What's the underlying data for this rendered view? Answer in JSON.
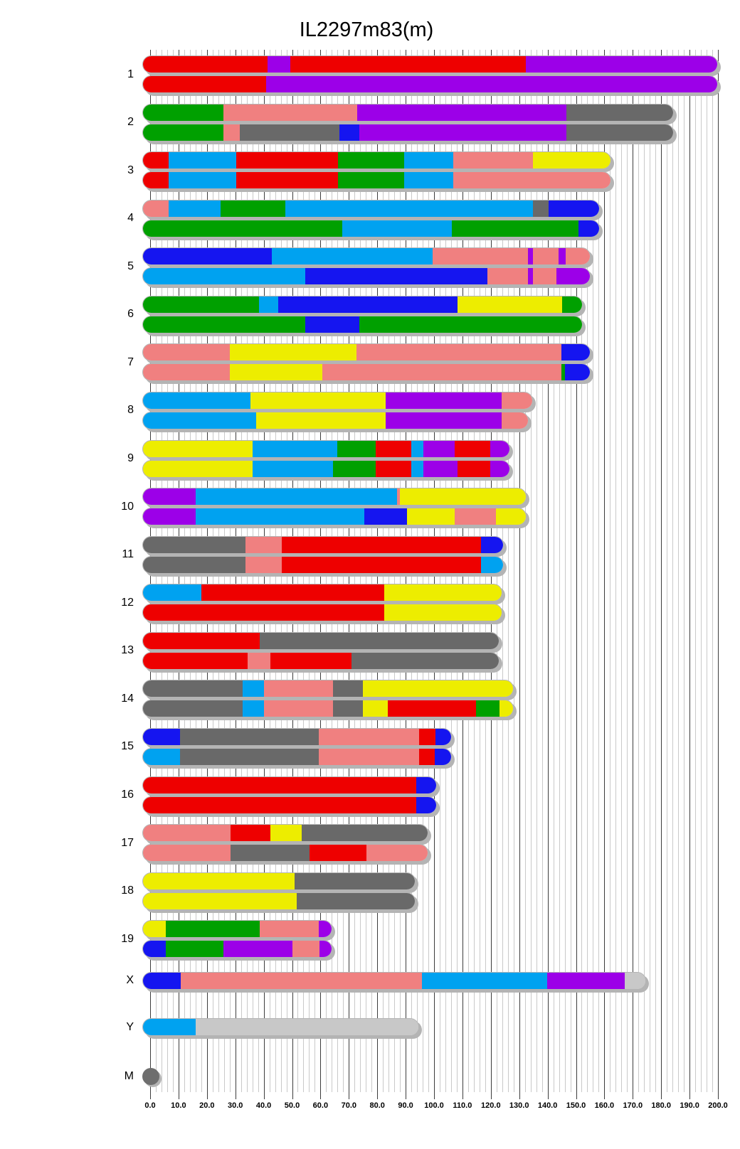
{
  "title": "IL2297m83(m)",
  "palette": {
    "red": "#ee0000",
    "purple": "#9c00e8",
    "green": "#00a000",
    "pink": "#f08080",
    "yellow": "#eded00",
    "cyan": "#00a2f0",
    "blue": "#1515f0",
    "darkgray": "#696969",
    "lightgray": "#c8c8c8",
    "mgray": "#6e6e6e",
    "shadow": "#b4b4b4",
    "gridline_minor": "#c9c9c9",
    "gridline_major": "#3c3c3c"
  },
  "chart_data": {
    "type": "heatmap",
    "subtype": "chromosome-haplotype-paint",
    "title": "IL2297m83(m)",
    "x_axis": {
      "min": 0,
      "max": 200,
      "major_tick": 10,
      "minor_tick": 2,
      "tick_labels": [
        "0.0",
        "10.0",
        "20.0",
        "30.0",
        "40.0",
        "50.0",
        "60.0",
        "70.0",
        "80.0",
        "90.0",
        "100.0",
        "110.0",
        "120.0",
        "130.0",
        "140.0",
        "150.0",
        "160.0",
        "170.0",
        "180.0",
        "190.0",
        "200.0"
      ]
    },
    "segment_format": [
      "color",
      "start_mb",
      "end_mb"
    ],
    "chromosomes": [
      {
        "name": "1",
        "bars": [
          [
            [
              "red",
              0,
              41
            ],
            [
              "purple",
              41,
              49.2
            ],
            [
              "red",
              49.2,
              132
            ],
            [
              "purple",
              132,
              197.2
            ]
          ],
          [
            [
              "red",
              0,
              40.5
            ],
            [
              "purple",
              40.5,
              197.2
            ]
          ]
        ]
      },
      {
        "name": "2",
        "bars": [
          [
            [
              "green",
              0,
              25.5
            ],
            [
              "pink",
              25.5,
              72.7
            ],
            [
              "purple",
              72.7,
              146.3
            ],
            [
              "darkgray",
              146.3,
              181.7
            ]
          ],
          [
            [
              "green",
              0,
              25.5
            ],
            [
              "pink",
              25.5,
              31.3
            ],
            [
              "darkgray",
              31.3,
              66.3
            ],
            [
              "blue",
              66.3,
              73.4
            ],
            [
              "purple",
              73.4,
              146.3
            ],
            [
              "darkgray",
              146.3,
              181.7
            ]
          ]
        ]
      },
      {
        "name": "3",
        "bars": [
          [
            [
              "red",
              0,
              6.2
            ],
            [
              "cyan",
              6.2,
              30.2
            ],
            [
              "red",
              30.2,
              66
            ],
            [
              "green",
              66,
              89.2
            ],
            [
              "cyan",
              89.2,
              106.6
            ],
            [
              "pink",
              106.6,
              134.6
            ],
            [
              "yellow",
              134.6,
              159.6
            ]
          ],
          [
            [
              "red",
              0,
              6.2
            ],
            [
              "cyan",
              6.2,
              30.2
            ],
            [
              "red",
              30.2,
              66
            ],
            [
              "green",
              66,
              89.2
            ],
            [
              "cyan",
              89.2,
              106.6
            ],
            [
              "pink",
              106.6,
              159.6
            ]
          ]
        ]
      },
      {
        "name": "4",
        "bars": [
          [
            [
              "pink",
              0,
              6.3
            ],
            [
              "cyan",
              6.3,
              24.5
            ],
            [
              "green",
              24.5,
              47.3
            ],
            [
              "cyan",
              47.3,
              134.6
            ],
            [
              "darkgray",
              134.6,
              140
            ],
            [
              "blue",
              140,
              155.6
            ]
          ],
          [
            [
              "green",
              0,
              67.4
            ],
            [
              "cyan",
              67.4,
              106
            ],
            [
              "green",
              106,
              150.6
            ],
            [
              "blue",
              150.6,
              155.6
            ]
          ]
        ]
      },
      {
        "name": "5",
        "bars": [
          [
            [
              "blue",
              0,
              42.7
            ],
            [
              "cyan",
              42.7,
              99.2
            ],
            [
              "pink",
              99.2,
              132.8
            ],
            [
              "purple",
              132.8,
              134.6
            ],
            [
              "pink",
              134.6,
              143.5
            ],
            [
              "purple",
              143.5,
              146
            ],
            [
              "pink",
              146,
              152.5
            ]
          ],
          [
            [
              "cyan",
              0,
              54.4
            ],
            [
              "blue",
              54.4,
              118.5
            ],
            [
              "pink",
              118.5,
              132.8
            ],
            [
              "purple",
              132.8,
              134.6
            ],
            [
              "pink",
              134.6,
              142.8
            ],
            [
              "purple",
              142.8,
              152.5
            ]
          ]
        ]
      },
      {
        "name": "6",
        "bars": [
          [
            [
              "green",
              0,
              38
            ],
            [
              "cyan",
              38,
              44.8
            ],
            [
              "blue",
              44.8,
              108
            ],
            [
              "yellow",
              108,
              144.9
            ],
            [
              "green",
              144.9,
              149.5
            ]
          ],
          [
            [
              "green",
              0,
              54.4
            ],
            [
              "blue",
              54.4,
              73.4
            ],
            [
              "green",
              73.4,
              149.5
            ]
          ]
        ]
      },
      {
        "name": "7",
        "bars": [
          [
            [
              "pink",
              0,
              27.7
            ],
            [
              "yellow",
              27.7,
              72.4
            ],
            [
              "pink",
              72.4,
              144.5
            ],
            [
              "blue",
              144.5,
              152.5
            ]
          ],
          [
            [
              "pink",
              0,
              27.7
            ],
            [
              "yellow",
              27.7,
              60.3
            ],
            [
              "pink",
              60.3,
              144.5
            ],
            [
              "green",
              144.5,
              145.8
            ],
            [
              "blue",
              145.8,
              152.5
            ]
          ]
        ]
      },
      {
        "name": "8",
        "bars": [
          [
            [
              "cyan",
              0,
              35.1
            ],
            [
              "yellow",
              35.1,
              82.7
            ],
            [
              "purple",
              82.7,
              123.5
            ],
            [
              "pink",
              123.5,
              132
            ]
          ],
          [
            [
              "cyan",
              0,
              37
            ],
            [
              "yellow",
              37,
              82.7
            ],
            [
              "purple",
              82.7,
              123.5
            ],
            [
              "pink",
              123.5,
              130.5
            ]
          ]
        ]
      },
      {
        "name": "9",
        "bars": [
          [
            [
              "yellow",
              0,
              35.8
            ],
            [
              "cyan",
              35.8,
              65.6
            ],
            [
              "green",
              65.6,
              79.2
            ],
            [
              "red",
              79.2,
              91.7
            ],
            [
              "cyan",
              91.7,
              96
            ],
            [
              "purple",
              96,
              107
            ],
            [
              "red",
              107,
              119.5
            ],
            [
              "purple",
              119.5,
              124.1
            ]
          ],
          [
            [
              "yellow",
              0,
              35.8
            ],
            [
              "cyan",
              35.8,
              64.1
            ],
            [
              "green",
              64.1,
              79.2
            ],
            [
              "red",
              79.2,
              91.7
            ],
            [
              "cyan",
              91.7,
              96
            ],
            [
              "purple",
              96,
              108
            ],
            [
              "red",
              108,
              119.5
            ],
            [
              "purple",
              119.5,
              124.1
            ]
          ]
        ]
      },
      {
        "name": "10",
        "bars": [
          [
            [
              "purple",
              0,
              15.9
            ],
            [
              "cyan",
              15.9,
              86.6
            ],
            [
              "pink",
              86.6,
              87.8
            ],
            [
              "yellow",
              87.8,
              129.9
            ]
          ],
          [
            [
              "purple",
              0,
              15.9
            ],
            [
              "cyan",
              15.9,
              75.2
            ],
            [
              "blue",
              75.2,
              90.2
            ],
            [
              "yellow",
              90.2,
              107
            ],
            [
              "pink",
              107,
              121.6
            ],
            [
              "yellow",
              121.6,
              129.9
            ]
          ]
        ]
      },
      {
        "name": "11",
        "bars": [
          [
            [
              "darkgray",
              0,
              33.4
            ],
            [
              "pink",
              33.4,
              46
            ],
            [
              "red",
              46,
              116.3
            ],
            [
              "blue",
              116.3,
              121.8
            ]
          ],
          [
            [
              "darkgray",
              0,
              33.4
            ],
            [
              "pink",
              33.4,
              46
            ],
            [
              "red",
              46,
              116.3
            ],
            [
              "cyan",
              116.3,
              121.8
            ]
          ]
        ]
      },
      {
        "name": "12",
        "bars": [
          [
            [
              "cyan",
              0,
              17.9
            ],
            [
              "red",
              17.9,
              82.3
            ],
            [
              "yellow",
              82.3,
              121.3
            ]
          ],
          [
            [
              "red",
              0,
              82.3
            ],
            [
              "yellow",
              82.3,
              121.3
            ]
          ]
        ]
      },
      {
        "name": "13",
        "bars": [
          [
            [
              "red",
              0,
              38.4
            ],
            [
              "darkgray",
              38.4,
              120.3
            ]
          ],
          [
            [
              "red",
              0,
              34.1
            ],
            [
              "pink",
              34.1,
              42
            ],
            [
              "red",
              42,
              70.6
            ],
            [
              "darkgray",
              70.6,
              120.3
            ]
          ]
        ]
      },
      {
        "name": "14",
        "bars": [
          [
            [
              "darkgray",
              0,
              32.4
            ],
            [
              "cyan",
              32.4,
              39.8
            ],
            [
              "pink",
              39.8,
              64.1
            ],
            [
              "darkgray",
              64.1,
              74.6
            ],
            [
              "yellow",
              74.6,
              125.2
            ]
          ],
          [
            [
              "darkgray",
              0,
              32.4
            ],
            [
              "cyan",
              32.4,
              39.8
            ],
            [
              "pink",
              39.8,
              64.1
            ],
            [
              "darkgray",
              64.1,
              74.6
            ],
            [
              "yellow",
              74.6,
              83.4
            ],
            [
              "red",
              83.4,
              114.6
            ],
            [
              "green",
              114.6,
              122.8
            ],
            [
              "yellow",
              122.8,
              125.2
            ]
          ]
        ]
      },
      {
        "name": "15",
        "bars": [
          [
            [
              "blue",
              0,
              10.2
            ],
            [
              "darkgray",
              10.2,
              59.1
            ],
            [
              "pink",
              59.1,
              94.4
            ],
            [
              "red",
              94.4,
              100.3
            ],
            [
              "blue",
              100.3,
              103.5
            ]
          ],
          [
            [
              "cyan",
              0,
              10.2
            ],
            [
              "darkgray",
              10.2,
              59.1
            ],
            [
              "pink",
              59.1,
              94.4
            ],
            [
              "red",
              94.4,
              100
            ],
            [
              "blue",
              100,
              103.5
            ]
          ]
        ]
      },
      {
        "name": "16",
        "bars": [
          [
            [
              "red",
              0,
              93.4
            ],
            [
              "blue",
              93.4,
              98.3
            ]
          ],
          [
            [
              "red",
              0,
              93.4
            ],
            [
              "blue",
              93.4,
              98.3
            ]
          ]
        ]
      },
      {
        "name": "17",
        "bars": [
          [
            [
              "pink",
              0,
              28
            ],
            [
              "red",
              28,
              42
            ],
            [
              "yellow",
              42,
              53.1
            ],
            [
              "darkgray",
              53.1,
              95.3
            ]
          ],
          [
            [
              "pink",
              0,
              28
            ],
            [
              "darkgray",
              28,
              55.8
            ],
            [
              "red",
              55.8,
              76
            ],
            [
              "pink",
              76,
              95.3
            ]
          ]
        ]
      },
      {
        "name": "18",
        "bars": [
          [
            [
              "yellow",
              0,
              50.6
            ],
            [
              "darkgray",
              50.6,
              90.8
            ]
          ],
          [
            [
              "yellow",
              0,
              51.3
            ],
            [
              "darkgray",
              51.3,
              90.8
            ]
          ]
        ]
      },
      {
        "name": "19",
        "bars": [
          [
            [
              "yellow",
              0,
              5.2
            ],
            [
              "green",
              5.2,
              38.4
            ],
            [
              "pink",
              38.4,
              59.1
            ],
            [
              "purple",
              59.1,
              61.3
            ]
          ],
          [
            [
              "blue",
              0,
              5.2
            ],
            [
              "green",
              5.2,
              25.5
            ],
            [
              "purple",
              25.5,
              49.9
            ],
            [
              "pink",
              49.9,
              59.5
            ],
            [
              "purple",
              59.5,
              61.3
            ]
          ]
        ]
      },
      {
        "name": "X",
        "bars": [
          [
            [
              "blue",
              0,
              10.5
            ],
            [
              "pink",
              10.5,
              95.6
            ],
            [
              "cyan",
              95.6,
              139.5
            ],
            [
              "purple",
              139.5,
              167
            ],
            [
              "lightgray",
              167,
              172
            ]
          ]
        ]
      },
      {
        "name": "Y",
        "bars": [
          [
            [
              "cyan",
              0,
              15.9
            ],
            [
              "lightgray",
              15.9,
              92
            ]
          ]
        ]
      },
      {
        "name": "M",
        "type": "circle",
        "color": "mgray"
      }
    ]
  }
}
